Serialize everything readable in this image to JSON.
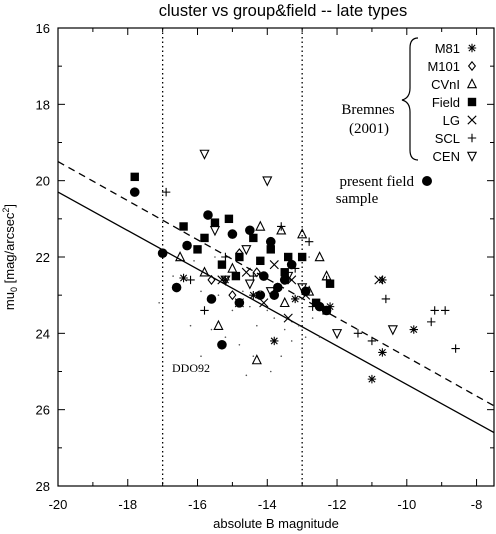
{
  "chart_data": {
    "type": "scatter",
    "title": "cluster vs group&field -- late types",
    "xlabel": "absolute B magnitude",
    "ylabel": "mu_0 [mag/arcsec^2]",
    "xlim": [
      -20,
      -7.5
    ],
    "ylim": [
      28,
      16
    ],
    "y_inverted": true,
    "grid": false,
    "x_ticks": [
      -20,
      -18,
      -16,
      -14,
      -12,
      -10,
      -8
    ],
    "y_ticks": [
      16,
      18,
      20,
      22,
      24,
      26,
      28
    ],
    "vertical_lines": [
      -17,
      -13
    ],
    "fit_lines": [
      {
        "style": "solid",
        "points": [
          [
            -20,
            20.3
          ],
          [
            -7.5,
            26.6
          ]
        ]
      },
      {
        "style": "dashed",
        "points": [
          [
            -20,
            19.5
          ],
          [
            -7.5,
            25.9
          ]
        ]
      }
    ],
    "annotations": {
      "reference": "Bremnes",
      "reference_year": "(2001)",
      "present_line1": "present field",
      "present_line2": "sample",
      "galaxy_label": "DDO92"
    },
    "legend_placement": "top-right",
    "series": [
      {
        "name": "M81",
        "marker": "asterisk",
        "points": [
          [
            -15.2,
            22.6
          ],
          [
            -14.4,
            23.0
          ],
          [
            -13.8,
            24.2
          ],
          [
            -12.2,
            23.3
          ],
          [
            -11.0,
            25.2
          ],
          [
            -10.7,
            24.5
          ],
          [
            -10.7,
            22.6
          ],
          [
            -9.8,
            23.9
          ],
          [
            -16.4,
            22.55
          ],
          [
            -13.2,
            23.1
          ]
        ]
      },
      {
        "name": "M101",
        "marker": "diamond",
        "points": [
          [
            -15.0,
            23.0
          ],
          [
            -14.3,
            22.4
          ],
          [
            -13.7,
            22.8
          ],
          [
            -15.6,
            22.6
          ],
          [
            -14.8,
            21.9
          ]
        ]
      },
      {
        "name": "CVnI",
        "marker": "triangle-up",
        "points": [
          [
            -16.5,
            22.0
          ],
          [
            -15.8,
            22.4
          ],
          [
            -15.0,
            22.3
          ],
          [
            -14.2,
            21.2
          ],
          [
            -13.6,
            21.3
          ],
          [
            -13.0,
            21.4
          ],
          [
            -12.3,
            22.5
          ],
          [
            -12.5,
            22.0
          ],
          [
            -15.4,
            23.8
          ],
          [
            -14.3,
            24.7
          ],
          [
            -13.5,
            23.2
          ],
          [
            -12.8,
            22.9
          ]
        ]
      },
      {
        "name": "Field",
        "marker": "square",
        "points": [
          [
            -17.8,
            19.9
          ],
          [
            -16.4,
            21.2
          ],
          [
            -16.0,
            21.8
          ],
          [
            -15.5,
            21.1
          ],
          [
            -15.8,
            21.5
          ],
          [
            -15.1,
            21.0
          ],
          [
            -14.8,
            22.0
          ],
          [
            -14.4,
            21.5
          ],
          [
            -14.2,
            22.1
          ],
          [
            -13.9,
            21.8
          ],
          [
            -13.4,
            22.0
          ],
          [
            -13.0,
            22.0
          ],
          [
            -12.6,
            23.2
          ],
          [
            -12.2,
            22.7
          ],
          [
            -12.3,
            23.4
          ],
          [
            -14.9,
            22.5
          ],
          [
            -13.5,
            22.4
          ],
          [
            -15.3,
            22.2
          ]
        ]
      },
      {
        "name": "LG",
        "marker": "cross",
        "points": [
          [
            -15.3,
            22.6
          ],
          [
            -14.6,
            22.4
          ],
          [
            -14.1,
            23.2
          ],
          [
            -13.8,
            22.2
          ],
          [
            -13.4,
            23.6
          ],
          [
            -12.9,
            23.0
          ],
          [
            -10.8,
            22.6
          ],
          [
            -14.8,
            23.2
          ],
          [
            -13.3,
            22.6
          ]
        ]
      },
      {
        "name": "SCL",
        "marker": "plus",
        "points": [
          [
            -16.9,
            20.3
          ],
          [
            -15.2,
            22.0
          ],
          [
            -14.4,
            22.5
          ],
          [
            -13.6,
            21.2
          ],
          [
            -13.2,
            22.3
          ],
          [
            -12.8,
            21.6
          ],
          [
            -12.3,
            22.6
          ],
          [
            -11.4,
            24.0
          ],
          [
            -10.6,
            23.1
          ],
          [
            -9.2,
            23.4
          ],
          [
            -8.9,
            23.4
          ],
          [
            -9.3,
            23.7
          ],
          [
            -8.6,
            24.4
          ],
          [
            -11.0,
            24.2
          ],
          [
            -12.7,
            23.3
          ],
          [
            -15.8,
            23.4
          ],
          [
            -13.4,
            22.6
          ],
          [
            -16.2,
            22.6
          ]
        ]
      },
      {
        "name": "CEN",
        "marker": "triangle-down",
        "points": [
          [
            -15.8,
            19.3
          ],
          [
            -15.5,
            21.3
          ],
          [
            -15.2,
            22.6
          ],
          [
            -14.6,
            21.8
          ],
          [
            -13.9,
            22.9
          ],
          [
            -13.4,
            22.5
          ],
          [
            -13.0,
            22.8
          ],
          [
            -12.0,
            24.0
          ],
          [
            -10.4,
            23.9
          ],
          [
            -14.0,
            20.0
          ],
          [
            -14.5,
            22.7
          ]
        ]
      },
      {
        "name": "present field sample",
        "marker": "circle",
        "points": [
          [
            -17.8,
            20.3
          ],
          [
            -17.0,
            21.9
          ],
          [
            -16.6,
            22.8
          ],
          [
            -16.3,
            21.7
          ],
          [
            -15.7,
            20.9
          ],
          [
            -15.6,
            23.1
          ],
          [
            -15.3,
            24.3
          ],
          [
            -14.8,
            23.2
          ],
          [
            -14.5,
            21.3
          ],
          [
            -14.1,
            22.5
          ],
          [
            -13.9,
            21.6
          ],
          [
            -13.7,
            22.8
          ],
          [
            -13.8,
            23.0
          ],
          [
            -13.5,
            22.6
          ],
          [
            -12.9,
            22.9
          ],
          [
            -12.5,
            23.3
          ],
          [
            -12.3,
            23.4
          ],
          [
            -15.0,
            21.4
          ],
          [
            -14.2,
            23.0
          ],
          [
            -13.3,
            22.2
          ]
        ]
      },
      {
        "name": "background dots",
        "marker": "dot",
        "points": [
          [
            -16.1,
            22.1
          ],
          [
            -15.9,
            22.9
          ],
          [
            -15.4,
            23.0
          ],
          [
            -15.0,
            23.4
          ],
          [
            -14.7,
            22.9
          ],
          [
            -14.5,
            23.3
          ],
          [
            -14.3,
            23.8
          ],
          [
            -14.0,
            23.4
          ],
          [
            -13.8,
            23.6
          ],
          [
            -13.5,
            23.9
          ],
          [
            -13.3,
            24.2
          ],
          [
            -13.1,
            23.8
          ],
          [
            -12.9,
            24.1
          ],
          [
            -12.7,
            23.6
          ],
          [
            -15.6,
            23.9
          ],
          [
            -15.2,
            24.1
          ],
          [
            -14.8,
            24.3
          ],
          [
            -14.4,
            24.6
          ],
          [
            -14.6,
            25.1
          ],
          [
            -13.9,
            25.0
          ],
          [
            -15.9,
            24.6
          ],
          [
            -16.2,
            23.8
          ],
          [
            -13.0,
            24.5
          ],
          [
            -12.5,
            24.1
          ],
          [
            -15.5,
            22.0
          ],
          [
            -14.2,
            22.9
          ],
          [
            -13.6,
            24.6
          ],
          [
            -16.7,
            22.5
          ],
          [
            -17.1,
            23.2
          ],
          [
            -12.8,
            22.0
          ]
        ]
      }
    ]
  }
}
